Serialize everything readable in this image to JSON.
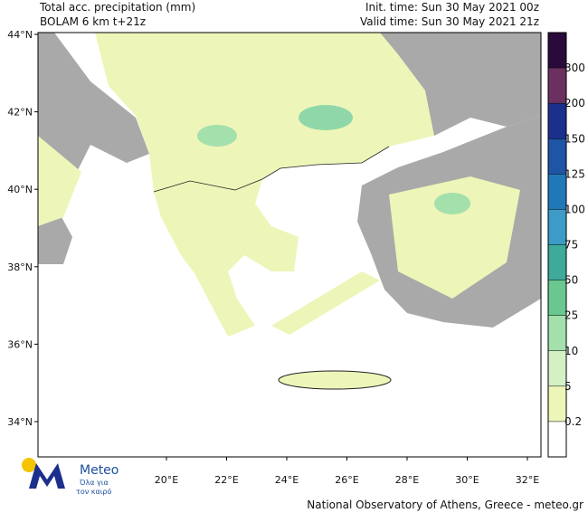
{
  "header": {
    "title": "Total acc. precipitation (mm)",
    "model": "BOLAM 6 km t+21z",
    "init_time": "Init. time: Sun 30 May 2021 00z",
    "valid_time": "Valid time: Sun 30 May 2021 21z"
  },
  "map": {
    "lat_labels": [
      "44°N",
      "42°N",
      "40°N",
      "38°N",
      "36°N",
      "34°N"
    ],
    "lon_labels": [
      "20°E",
      "22°E",
      "24°E",
      "26°E",
      "28°E",
      "30°E",
      "32°E"
    ]
  },
  "colorbar": {
    "levels": [
      0.2,
      5,
      10,
      25,
      50,
      75,
      100,
      125,
      150,
      200,
      300
    ],
    "colors": [
      "#ffffff",
      "#eef5b8",
      "#d4f1c6",
      "#a3e0ac",
      "#6ac78f",
      "#3fa99a",
      "#3d9bc8",
      "#2178b8",
      "#1e55a6",
      "#1c2f8c",
      "#6b3060",
      "#2a0a3a"
    ]
  },
  "logo": {
    "name": "Meteo",
    "tagline_1": "Όλα για",
    "tagline_2": "τον καιρό"
  },
  "footer": "National Observatory of Athens, Greece - meteo.gr"
}
